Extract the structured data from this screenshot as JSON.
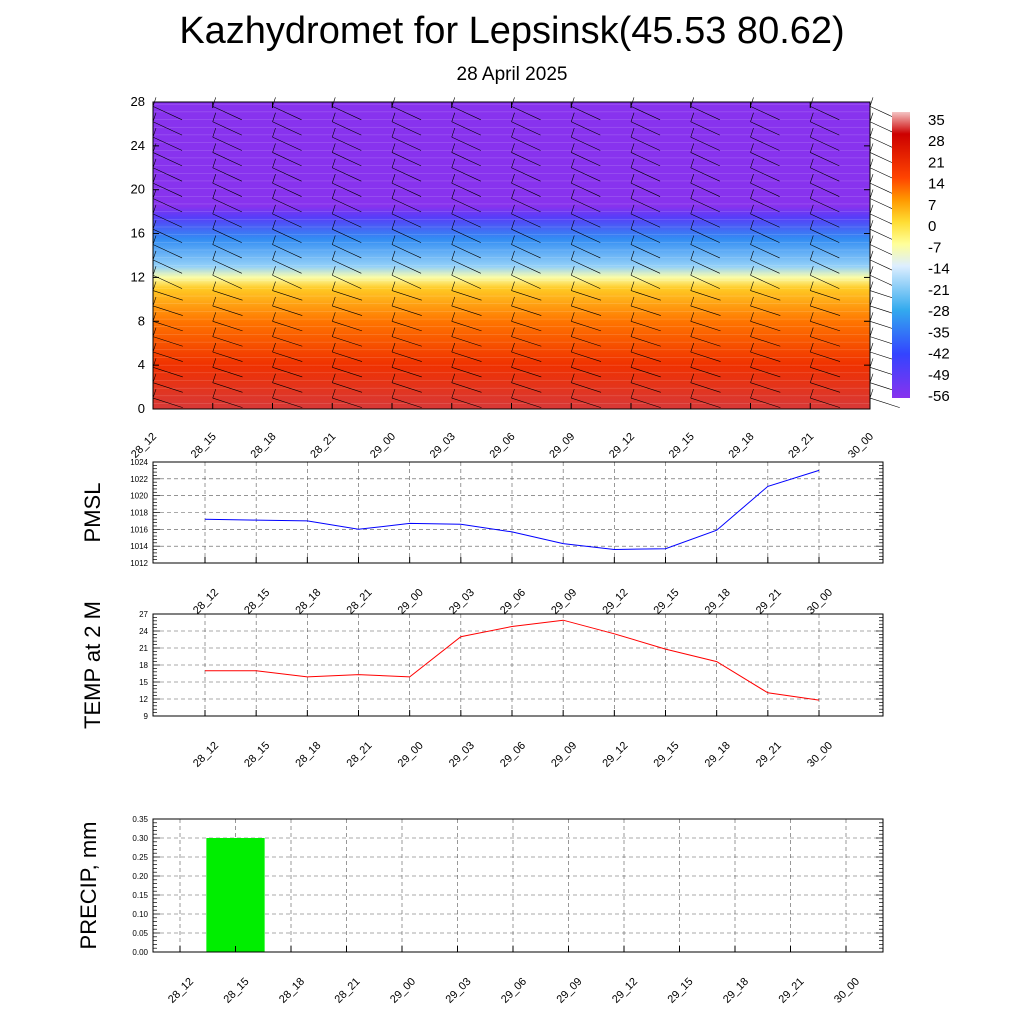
{
  "title": "Kazhydromet for Lepsinsk(45.53 80.62)",
  "subtitle": "28 April 2025",
  "chart_data": [
    {
      "type": "heatmap",
      "description_type": "time-height cross-section with wind barbs",
      "x_ticks": [
        "28_12",
        "28_15",
        "28_18",
        "28_21",
        "29_00",
        "29_03",
        "29_06",
        "29_09",
        "29_12",
        "29_15",
        "29_18",
        "29_21",
        "30_00"
      ],
      "y_ticks": [
        "0",
        "4",
        "8",
        "12",
        "16",
        "20",
        "24",
        "28"
      ],
      "ylim": [
        0,
        28
      ],
      "colorbar": {
        "labels": [
          "35",
          "28",
          "21",
          "14",
          "7",
          "0",
          "-7",
          "-14",
          "-21",
          "-28",
          "-35",
          "-42",
          "-49",
          "-56"
        ],
        "stops": [
          {
            "value": 35,
            "color": "#f4c4c4"
          },
          {
            "value": 28,
            "color": "#cc0000"
          },
          {
            "value": 14,
            "color": "#ff4400"
          },
          {
            "value": 7,
            "color": "#ff9900"
          },
          {
            "value": 0,
            "color": "#ffdd33"
          },
          {
            "value": -7,
            "color": "#ffff99"
          },
          {
            "value": -14,
            "color": "#ddeeff"
          },
          {
            "value": -28,
            "color": "#33aaee"
          },
          {
            "value": -42,
            "color": "#3344ff"
          },
          {
            "value": -56,
            "color": "#8833ee"
          }
        ]
      },
      "temperature_profile": [
        {
          "height": 0,
          "value": 30
        },
        {
          "height": 4,
          "value": 18
        },
        {
          "height": 8,
          "value": 10
        },
        {
          "height": 11,
          "value": 2
        },
        {
          "height": 12,
          "value": -8
        },
        {
          "height": 13,
          "value": -20
        },
        {
          "height": 15.5,
          "value": -32
        },
        {
          "height": 17.5,
          "value": -48
        },
        {
          "height": 18.5,
          "value": -58
        },
        {
          "height": 28,
          "value": -58
        }
      ],
      "wind_barbs": true
    },
    {
      "type": "line",
      "ylabel": "PMSL",
      "x": [
        "28_12",
        "28_15",
        "28_18",
        "28_21",
        "29_00",
        "29_03",
        "29_06",
        "29_09",
        "29_12",
        "29_15",
        "29_18",
        "29_21",
        "30_00"
      ],
      "series": [
        {
          "values": [
            1017.2,
            1017.1,
            1017.0,
            1016.0,
            1016.7,
            1016.6,
            1015.7,
            1014.3,
            1013.6,
            1013.7,
            1015.9,
            1021.1,
            1023.0
          ],
          "color": "#0000ff"
        }
      ],
      "ylim": [
        1012,
        1024
      ],
      "y_ticks": [
        "1012",
        "1014",
        "1016",
        "1018",
        "1020",
        "1022",
        "1024"
      ],
      "grid": true
    },
    {
      "type": "line",
      "ylabel": "TEMP at 2 M",
      "x": [
        "28_12",
        "28_15",
        "28_18",
        "28_21",
        "29_00",
        "29_03",
        "29_06",
        "29_09",
        "29_12",
        "29_15",
        "29_18",
        "29_21",
        "30_00"
      ],
      "series": [
        {
          "values": [
            17.0,
            17.0,
            15.9,
            16.3,
            15.9,
            23.0,
            24.8,
            25.9,
            23.5,
            20.8,
            18.6,
            13.1,
            11.8
          ],
          "color": "#ff0000"
        }
      ],
      "ylim": [
        9,
        27
      ],
      "y_ticks": [
        "9",
        "12",
        "15",
        "18",
        "21",
        "24",
        "27"
      ],
      "grid": true
    },
    {
      "type": "bar",
      "ylabel": "PRECIP, mm",
      "categories": [
        "28_12",
        "28_15",
        "28_18",
        "28_21",
        "29_00",
        "29_03",
        "29_06",
        "29_09",
        "29_12",
        "29_15",
        "29_18",
        "29_21",
        "30_00"
      ],
      "values": [
        0,
        0.3,
        0,
        0,
        0,
        0,
        0,
        0,
        0,
        0,
        0,
        0,
        0
      ],
      "bar_color": "#00ee00",
      "ylim": [
        0,
        0.35
      ],
      "y_ticks": [
        "0.00",
        "0.05",
        "0.10",
        "0.15",
        "0.20",
        "0.25",
        "0.30",
        "0.35"
      ],
      "grid": true
    }
  ]
}
